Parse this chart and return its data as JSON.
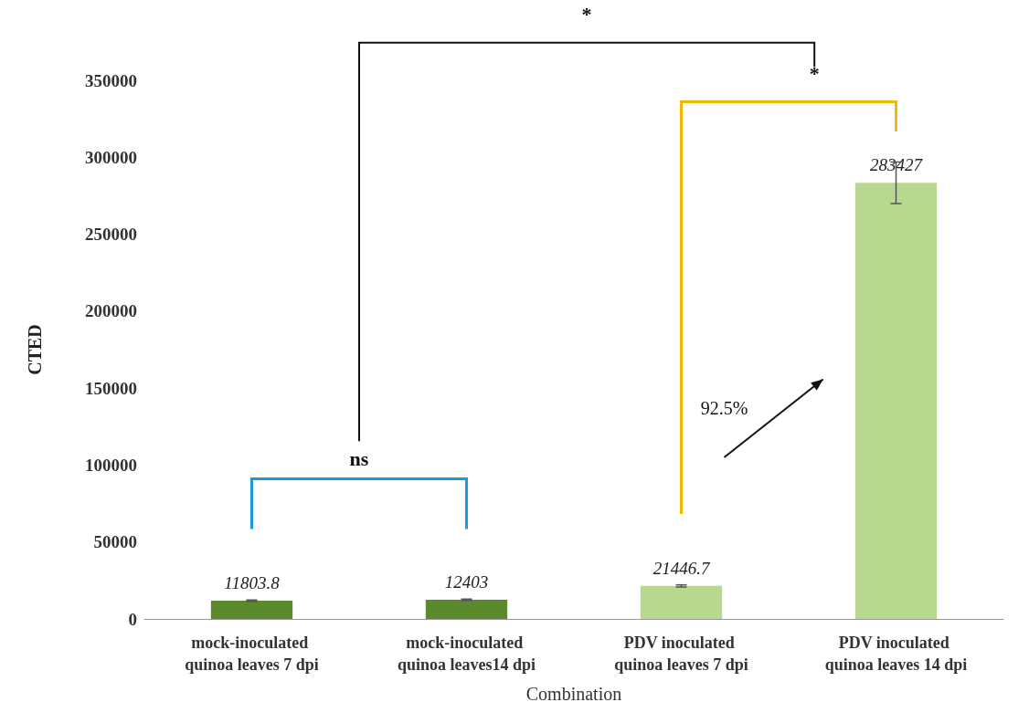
{
  "chart_data": {
    "type": "bar",
    "xlabel": "Combination",
    "ylabel": "CTED",
    "categories": [
      "mock-inoculated quinoa leaves 7 dpi",
      "mock-inoculated quinoa leaves14 dpi",
      "PDV inoculated quinoa leaves 7 dpi",
      "PDV inoculated quinoa leaves 14 dpi"
    ],
    "values": [
      11803.8,
      12403,
      21446.7,
      283427
    ],
    "colors": [
      "#5b8a2c",
      "#5b8a2c",
      "#b8d78f",
      "#b8d78f"
    ],
    "errors": [
      500,
      500,
      700,
      13500
    ],
    "data_labels": true,
    "ylim": [
      0,
      350000
    ],
    "yticks": [
      0,
      50000,
      100000,
      150000,
      200000,
      250000,
      300000,
      350000
    ],
    "grid": false,
    "annotations": [
      "*",
      "*",
      "ns",
      "92.5%"
    ]
  }
}
